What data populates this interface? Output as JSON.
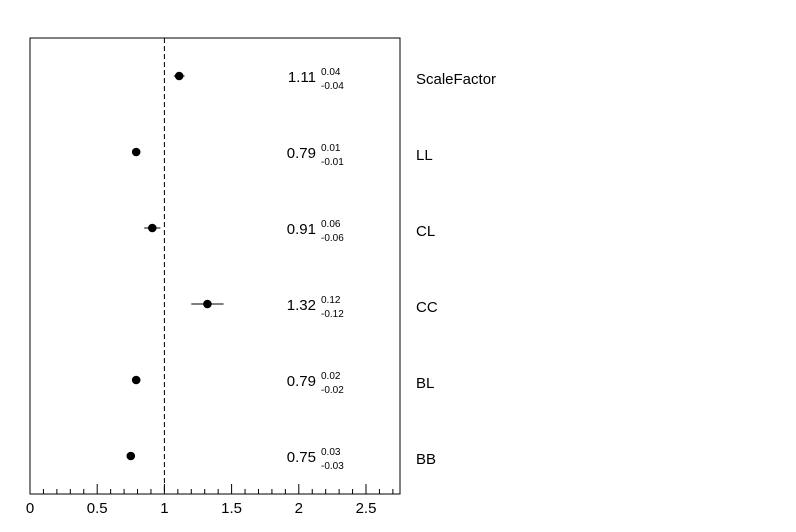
{
  "chart_data": {
    "type": "scatter",
    "title": "",
    "xlabel": "",
    "ylabel": "",
    "xlim": [
      0,
      2.75
    ],
    "x_ticks": [
      "0",
      "0.5",
      "1",
      "1.5",
      "2",
      "2.5"
    ],
    "reference_line": 1,
    "grid": false,
    "points": [
      {
        "label": "ScaleFactor",
        "value": 1.11,
        "value_text": "1.11",
        "err_up": "0.04",
        "err_down": "-0.04"
      },
      {
        "label": "LL",
        "value": 0.79,
        "value_text": "0.79",
        "err_up": "0.01",
        "err_down": "-0.01"
      },
      {
        "label": "CL",
        "value": 0.91,
        "value_text": "0.91",
        "err_up": "0.06",
        "err_down": "-0.06"
      },
      {
        "label": "CC",
        "value": 1.32,
        "value_text": "1.32",
        "err_up": "0.12",
        "err_down": "-0.12"
      },
      {
        "label": "BL",
        "value": 0.79,
        "value_text": "0.79",
        "err_up": "0.02",
        "err_down": "-0.02"
      },
      {
        "label": "BB",
        "value": 0.75,
        "value_text": "0.75",
        "err_up": "0.03",
        "err_down": "-0.03"
      }
    ]
  }
}
